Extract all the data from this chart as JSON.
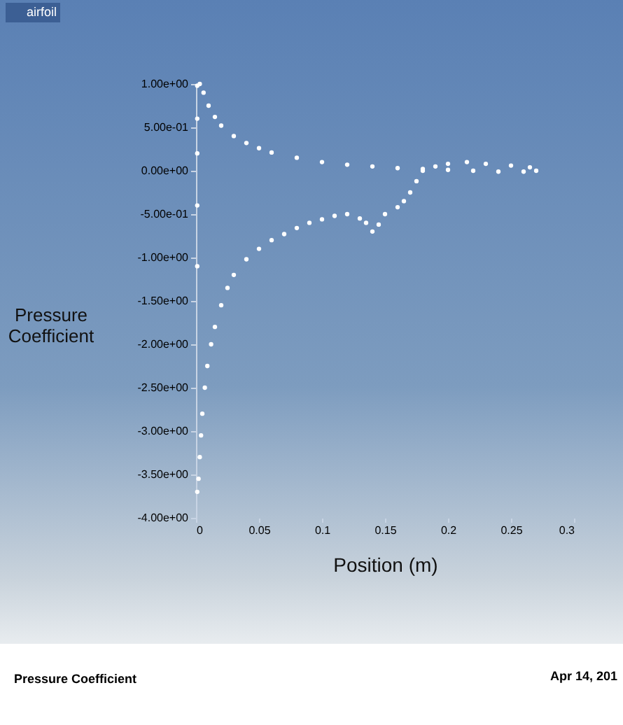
{
  "chart_data": {
    "type": "scatter",
    "title": "Pressure Coefficient",
    "xlabel": "Position (m)",
    "ylabel": "Pressure Coefficient",
    "annotations": [
      "Apr 14, 201"
    ],
    "legend": "top left",
    "marker": "circle",
    "xlim": [
      0,
      0.3
    ],
    "ylim": [
      -4,
      1
    ],
    "xticks": [
      0,
      0.05,
      0.1,
      0.15,
      0.2,
      0.25,
      0.3
    ],
    "yticks": [
      {
        "value": 1,
        "label": "1.00e+00"
      },
      {
        "value": 0.5,
        "label": "5.00e-01"
      },
      {
        "value": 0,
        "label": "0.00e+00"
      },
      {
        "value": -0.5,
        "label": "-5.00e-01"
      },
      {
        "value": -1,
        "label": "-1.00e+00"
      },
      {
        "value": -1.5,
        "label": "-1.50e+00"
      },
      {
        "value": -2,
        "label": "-2.00e+00"
      },
      {
        "value": -2.5,
        "label": "-2.50e+00"
      },
      {
        "value": -3,
        "label": "-3.00e+00"
      },
      {
        "value": -3.5,
        "label": "-3.50e+00"
      },
      {
        "value": -4,
        "label": "-4.00e+00"
      }
    ],
    "series": [
      {
        "name": "airfoil",
        "color": "#ffffff",
        "x": [
          0.001,
          0.003,
          0.006,
          0.01,
          0.015,
          0.02,
          0.03,
          0.04,
          0.05,
          0.06,
          0.08,
          0.1,
          0.12,
          0.14,
          0.16,
          0.18,
          0.2,
          0.22,
          0.24,
          0.26,
          0.27,
          0.265,
          0.25,
          0.23,
          0.215,
          0.2,
          0.19,
          0.18,
          0.175,
          0.17,
          0.165,
          0.16,
          0.15,
          0.145,
          0.14,
          0.135,
          0.13,
          0.12,
          0.11,
          0.1,
          0.09,
          0.08,
          0.07,
          0.06,
          0.05,
          0.04,
          0.03,
          0.025,
          0.02,
          0.015,
          0.012,
          0.009,
          0.007,
          0.005,
          0.004,
          0.003,
          0.002,
          0.001,
          0.001,
          0.001,
          0.001,
          0.001
        ],
        "values": [
          0.98,
          1.0,
          0.9,
          0.75,
          0.62,
          0.52,
          0.4,
          0.32,
          0.26,
          0.21,
          0.15,
          0.1,
          0.07,
          0.05,
          0.03,
          0.02,
          0.01,
          0.0,
          -0.01,
          -0.01,
          0.0,
          0.04,
          0.06,
          0.08,
          0.1,
          0.08,
          0.05,
          0.0,
          -0.12,
          -0.25,
          -0.35,
          -0.42,
          -0.5,
          -0.62,
          -0.7,
          -0.6,
          -0.55,
          -0.5,
          -0.52,
          -0.56,
          -0.6,
          -0.66,
          -0.73,
          -0.8,
          -0.9,
          -1.02,
          -1.2,
          -1.35,
          -1.55,
          -1.8,
          -2.0,
          -2.25,
          -2.5,
          -2.8,
          -3.05,
          -3.3,
          -3.55,
          -3.7,
          0.6,
          0.2,
          -0.4,
          -1.1
        ]
      }
    ]
  }
}
